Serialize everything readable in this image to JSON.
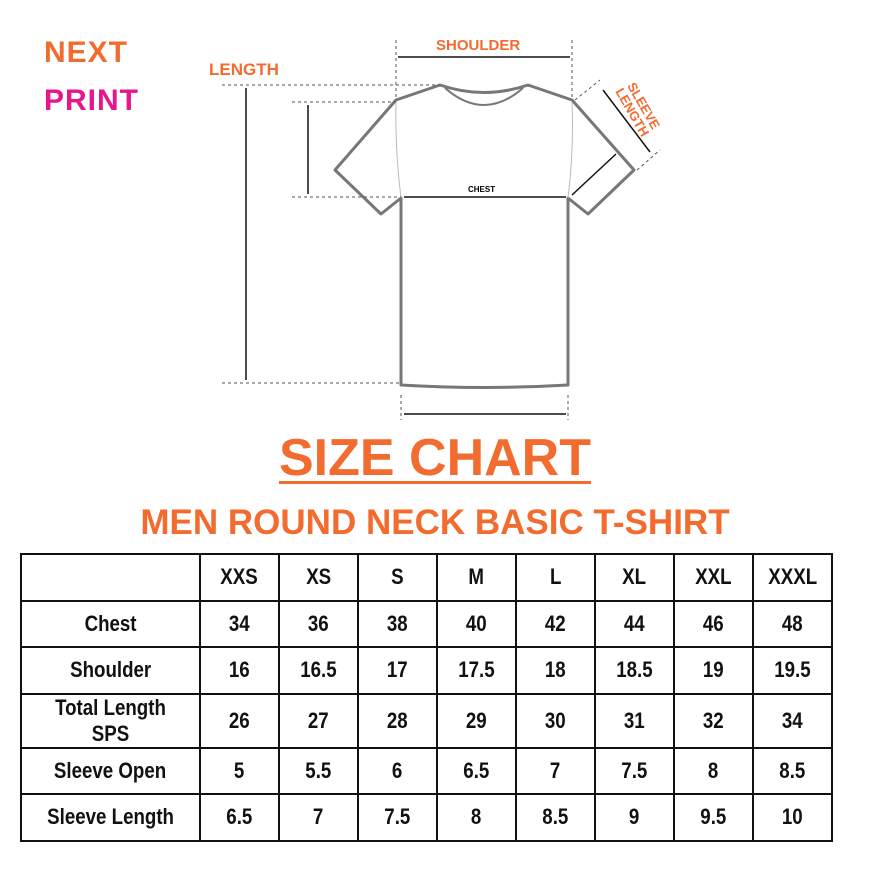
{
  "logo": {
    "line1": "NEXT",
    "line2": "PRINT",
    "colors": {
      "next": "#f26b2f",
      "print": "#e6168c"
    }
  },
  "diagram": {
    "length": "LENGTH",
    "shoulder": "SHOULDER",
    "sleeve_length": "SLEEVE LENGTH",
    "chest": "CHEST"
  },
  "title": "SIZE CHART",
  "subtitle": "MEN ROUND NECK BASIC T-SHIRT",
  "accent_color": "#f26b2f",
  "table": {
    "headers": [
      "",
      "XXS",
      "XS",
      "S",
      "M",
      "L",
      "XL",
      "XXL",
      "XXXL"
    ],
    "rows": [
      [
        "Chest",
        "34",
        "36",
        "38",
        "40",
        "42",
        "44",
        "46",
        "48"
      ],
      [
        "Shoulder",
        "16",
        "16.5",
        "17",
        "17.5",
        "18",
        "18.5",
        "19",
        "19.5"
      ],
      [
        "Total Length SPS",
        "26",
        "27",
        "28",
        "29",
        "30",
        "31",
        "32",
        "34"
      ],
      [
        "Sleeve Open",
        "5",
        "5.5",
        "6",
        "6.5",
        "7",
        "7.5",
        "8",
        "8.5"
      ],
      [
        "Sleeve Length",
        "6.5",
        "7",
        "7.5",
        "8",
        "8.5",
        "9",
        "9.5",
        "10"
      ]
    ]
  }
}
